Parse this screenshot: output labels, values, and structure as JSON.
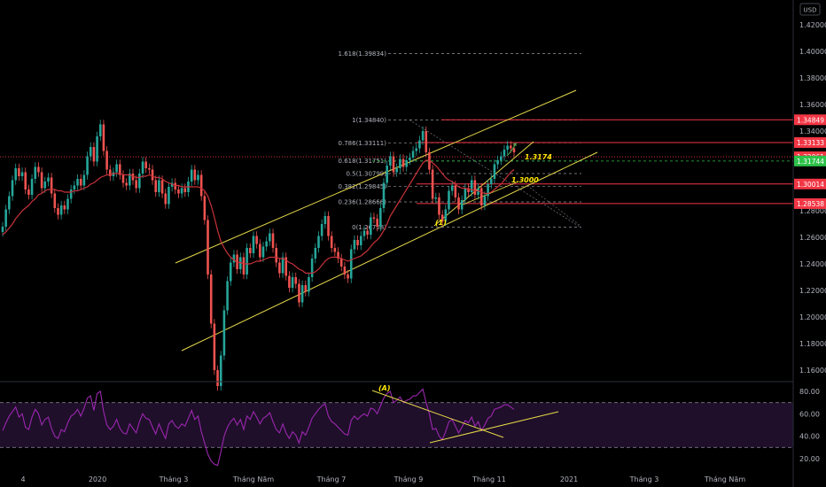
{
  "currency_label": "USD",
  "price_axis": {
    "ticks": [
      "1.42000",
      "1.40000",
      "1.38000",
      "1.36000",
      "1.34000",
      "1.32000",
      "1.30000",
      "1.28000",
      "1.26000",
      "1.24000",
      "1.22000",
      "1.20000",
      "1.18000",
      "1.16000"
    ],
    "min": 1.145,
    "max": 1.435
  },
  "rsi_axis": {
    "ticks": [
      "80.00",
      "60.00",
      "40.00",
      "20.00"
    ],
    "min": 12,
    "max": 88,
    "upper_band": 70,
    "lower_band": 30
  },
  "time_axis": {
    "labels": [
      "4",
      "2020",
      "Tháng 3",
      "Tháng Năm",
      "Tháng 7",
      "Tháng 9",
      "Tháng 11",
      "2021",
      "Tháng 3",
      "Tháng Năm"
    ]
  },
  "price_badges": [
    {
      "text": "1.34849",
      "value": 1.34849,
      "color": "#f23645"
    },
    {
      "text": "1.33133",
      "value": 1.33133,
      "color": "#f23645"
    },
    {
      "text": "1.32061",
      "value": 1.32061,
      "color": "#f23645"
    },
    {
      "text": "1.31744",
      "value": 1.31744,
      "color": "#2ec24a"
    },
    {
      "text": "1.30014",
      "value": 1.30014,
      "color": "#f23645"
    },
    {
      "text": "1.28538",
      "value": 1.28538,
      "color": "#f23645"
    }
  ],
  "fib_levels": [
    {
      "label": "1.618(1.39834)",
      "value": 1.39834
    },
    {
      "label": "1(1.34840)",
      "value": 1.3484
    },
    {
      "label": "0.786(1.33111)",
      "value": 1.33111
    },
    {
      "label": "0.618(1.31751)",
      "value": 1.31751
    },
    {
      "label": "0.5(1.30799)",
      "value": 1.30799
    },
    {
      "label": "0.382(1.29845)",
      "value": 1.29845
    },
    {
      "label": "0.236(1.28666)",
      "value": 1.28666
    },
    {
      "label": "0(1.26758)",
      "value": 1.26758
    }
  ],
  "annotations": {
    "level_a": "1.3174",
    "level_b": "1.3000",
    "wave_1": "(1)",
    "wave_a": "(A)"
  },
  "colors": {
    "up": "#26a69a",
    "down": "#ef5350",
    "ma": "#c8323a",
    "channel": "#e6d94a",
    "rsi": "#9c27b0",
    "rsi_band": "#1f0f2a"
  },
  "chart_data": {
    "type": "candlestick",
    "close_series": [
      1.268,
      1.281,
      1.291,
      1.303,
      1.312,
      1.306,
      1.309,
      1.296,
      1.292,
      1.304,
      1.313,
      1.309,
      1.297,
      1.302,
      1.305,
      1.293,
      1.282,
      1.277,
      1.284,
      1.281,
      1.289,
      1.296,
      1.299,
      1.304,
      1.299,
      1.307,
      1.321,
      1.328,
      1.317,
      1.336,
      1.345,
      1.325,
      1.311,
      1.306,
      1.309,
      1.315,
      1.307,
      1.301,
      1.299,
      1.308,
      1.303,
      1.297,
      1.308,
      1.317,
      1.312,
      1.311,
      1.303,
      1.294,
      1.303,
      1.293,
      1.285,
      1.298,
      1.301,
      1.296,
      1.293,
      1.297,
      1.294,
      1.302,
      1.311,
      1.303,
      1.307,
      1.291,
      1.273,
      1.232,
      1.195,
      1.16,
      1.148,
      1.171,
      1.205,
      1.227,
      1.241,
      1.247,
      1.236,
      1.245,
      1.232,
      1.252,
      1.248,
      1.261,
      1.255,
      1.245,
      1.253,
      1.257,
      1.263,
      1.252,
      1.241,
      1.233,
      1.245,
      1.231,
      1.222,
      1.23,
      1.225,
      1.211,
      1.224,
      1.219,
      1.23,
      1.244,
      1.252,
      1.261,
      1.27,
      1.276,
      1.261,
      1.252,
      1.249,
      1.244,
      1.238,
      1.232,
      1.229,
      1.251,
      1.258,
      1.254,
      1.261,
      1.265,
      1.262,
      1.275,
      1.274,
      1.268,
      1.282,
      1.301,
      1.314,
      1.321,
      1.309,
      1.312,
      1.319,
      1.313,
      1.318,
      1.32,
      1.325,
      1.327,
      1.333,
      1.34,
      1.324,
      1.311,
      1.289,
      1.29,
      1.277,
      1.272,
      1.281,
      1.295,
      1.299,
      1.29,
      1.281,
      1.288,
      1.297,
      1.294,
      1.303,
      1.292,
      1.297,
      1.284,
      1.291,
      1.3,
      1.304,
      1.315,
      1.318,
      1.321,
      1.326,
      1.329,
      1.327,
      1.324
    ],
    "ma_series": [
      1.262,
      1.264,
      1.267,
      1.27,
      1.274,
      1.277,
      1.28,
      1.282,
      1.284,
      1.287,
      1.289,
      1.292,
      1.293,
      1.295,
      1.296,
      1.296,
      1.296,
      1.295,
      1.295,
      1.294,
      1.294,
      1.294,
      1.295,
      1.295,
      1.296,
      1.297,
      1.298,
      1.3,
      1.301,
      1.303,
      1.305,
      1.306,
      1.307,
      1.307,
      1.308,
      1.308,
      1.308,
      1.307,
      1.307,
      1.307,
      1.306,
      1.305,
      1.305,
      1.306,
      1.306,
      1.307,
      1.306,
      1.305,
      1.305,
      1.304,
      1.302,
      1.301,
      1.3,
      1.299,
      1.299,
      1.298,
      1.298,
      1.298,
      1.298,
      1.298,
      1.298,
      1.297,
      1.295,
      1.291,
      1.284,
      1.275,
      1.265,
      1.257,
      1.252,
      1.248,
      1.245,
      1.243,
      1.241,
      1.241,
      1.24,
      1.24,
      1.24,
      1.241,
      1.242,
      1.242,
      1.243,
      1.244,
      1.245,
      1.245,
      1.245,
      1.244,
      1.244,
      1.243,
      1.241,
      1.24,
      1.238,
      1.236,
      1.235,
      1.233,
      1.233,
      1.233,
      1.234,
      1.236,
      1.239,
      1.242,
      1.244,
      1.245,
      1.245,
      1.245,
      1.244,
      1.243,
      1.242,
      1.243,
      1.244,
      1.245,
      1.246,
      1.248,
      1.25,
      1.253,
      1.256,
      1.258,
      1.261,
      1.265,
      1.27,
      1.276,
      1.28,
      1.284,
      1.288,
      1.292,
      1.296,
      1.3,
      1.304,
      1.308,
      1.312,
      1.316,
      1.318,
      1.318,
      1.316,
      1.314,
      1.311,
      1.308,
      1.305,
      1.303,
      1.302,
      1.3,
      1.298,
      1.297,
      1.297,
      1.296,
      1.296,
      1.295,
      1.295,
      1.294,
      1.293,
      1.293,
      1.294,
      1.296,
      1.298,
      1.3,
      1.303,
      1.306,
      1.309,
      1.311
    ],
    "rsi_series": [
      45,
      52,
      58,
      62,
      66,
      57,
      60,
      48,
      46,
      57,
      64,
      60,
      50,
      55,
      57,
      47,
      40,
      38,
      46,
      44,
      52,
      58,
      60,
      64,
      58,
      65,
      74,
      76,
      63,
      78,
      80,
      62,
      50,
      46,
      49,
      55,
      47,
      43,
      42,
      51,
      47,
      43,
      53,
      60,
      56,
      55,
      48,
      42,
      51,
      44,
      38,
      51,
      54,
      49,
      47,
      51,
      49,
      56,
      63,
      55,
      58,
      44,
      34,
      24,
      18,
      15,
      14,
      26,
      40,
      48,
      53,
      56,
      50,
      55,
      46,
      58,
      55,
      62,
      57,
      51,
      56,
      58,
      61,
      53,
      46,
      43,
      51,
      43,
      38,
      44,
      41,
      34,
      44,
      41,
      48,
      56,
      60,
      64,
      67,
      69,
      58,
      53,
      51,
      48,
      45,
      42,
      41,
      54,
      58,
      55,
      58,
      60,
      58,
      65,
      64,
      60,
      67,
      74,
      78,
      80,
      70,
      72,
      75,
      70,
      72,
      73,
      76,
      76,
      79,
      82,
      70,
      60,
      46,
      47,
      40,
      37,
      44,
      53,
      55,
      49,
      43,
      48,
      54,
      52,
      57,
      49,
      53,
      45,
      50,
      56,
      58,
      64,
      65,
      66,
      68,
      68,
      66,
      64
    ],
    "fibonacci": [
      1.39834,
      1.3484,
      1.33111,
      1.31751,
      1.30799,
      1.29845,
      1.28666,
      1.26758
    ],
    "horizontal_levels": [
      1.34849,
      1.33133,
      1.32061,
      1.31744,
      1.30014,
      1.28538
    ]
  }
}
